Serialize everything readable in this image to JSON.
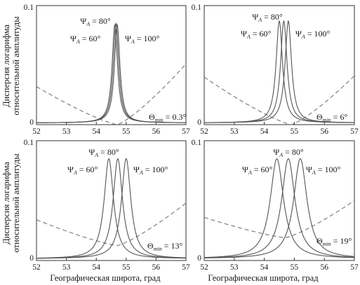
{
  "figure": {
    "ylabel_line1": "Дисперсия логарифма",
    "ylabel_line2": "относительной амплитуды",
    "xlabel": "Географическая широта, град"
  },
  "chart_data": [
    {
      "type": "line",
      "xlim": [
        52,
        57
      ],
      "ylim": [
        0,
        0.1
      ],
      "xticks": [
        "52",
        "53",
        "54",
        "55",
        "56",
        "57"
      ],
      "yticks": [
        "0",
        "0.1"
      ],
      "grid": false,
      "series": [
        {
          "name": "ΨA = 60°",
          "peak_x": 54.62,
          "peak_y": 0.084,
          "width": 0.11
        },
        {
          "name": "ΨA = 80°",
          "peak_x": 54.66,
          "peak_y": 0.085,
          "width": 0.11
        },
        {
          "name": "ΨA = 100°",
          "peak_x": 54.7,
          "peak_y": 0.084,
          "width": 0.11
        }
      ],
      "dashed_curve": {
        "x": [
          52.0,
          54.7,
          57.0
        ],
        "y": [
          0.032,
          0.0,
          0.051
        ]
      },
      "annotations": [
        {
          "type": "subscript",
          "base": "Ψ",
          "sub": "A",
          "tail": " = 80°"
        },
        {
          "type": "subscript",
          "base": "Ψ",
          "sub": "A",
          "tail": " = 60°"
        },
        {
          "type": "subscript",
          "base": "Ψ",
          "sub": "A",
          "tail": " = 100°"
        },
        {
          "type": "subscript",
          "base": "Θ",
          "sub": "min",
          "tail": " = 0.3°"
        }
      ]
    },
    {
      "type": "line",
      "xlim": [
        52,
        57
      ],
      "ylim": [
        0,
        0.1
      ],
      "xticks": [
        "52",
        "53",
        "54",
        "55",
        "56",
        "57"
      ],
      "yticks": [
        "0",
        "0.1"
      ],
      "grid": false,
      "series": [
        {
          "name": "ΨA = 60°",
          "peak_x": 54.5,
          "peak_y": 0.087,
          "width": 0.13
        },
        {
          "name": "ΨA = 80°",
          "peak_x": 54.65,
          "peak_y": 0.087,
          "width": 0.13
        },
        {
          "name": "ΨA = 100°",
          "peak_x": 54.8,
          "peak_y": 0.087,
          "width": 0.13
        }
      ],
      "dashed_curve": {
        "x": [
          52.0,
          54.9,
          57.0
        ],
        "y": [
          0.04,
          0.0,
          0.041
        ]
      },
      "annotations": [
        {
          "type": "subscript",
          "base": "Ψ",
          "sub": "A",
          "tail": " = 80°"
        },
        {
          "type": "subscript",
          "base": "Ψ",
          "sub": "A",
          "tail": " = 60°"
        },
        {
          "type": "subscript",
          "base": "Ψ",
          "sub": "A",
          "tail": " = 100°"
        },
        {
          "type": "subscript",
          "base": "Θ",
          "sub": "min",
          "tail": " = 6°"
        }
      ]
    },
    {
      "type": "line",
      "xlim": [
        52,
        57
      ],
      "ylim": [
        0,
        0.1
      ],
      "xticks": [
        "52",
        "53",
        "54",
        "55",
        "56",
        "57"
      ],
      "yticks": [
        "0",
        "0.1"
      ],
      "grid": false,
      "series": [
        {
          "name": "ΨA = 60°",
          "peak_x": 54.42,
          "peak_y": 0.085,
          "width": 0.19
        },
        {
          "name": "ΨA = 80°",
          "peak_x": 54.72,
          "peak_y": 0.085,
          "width": 0.19
        },
        {
          "name": "ΨA = 100°",
          "peak_x": 55.0,
          "peak_y": 0.085,
          "width": 0.19
        }
      ],
      "dashed_curve": {
        "x": [
          52.0,
          54.7,
          57.0
        ],
        "y": [
          0.034,
          0.0125,
          0.048
        ]
      },
      "annotations": [
        {
          "type": "subscript",
          "base": "Ψ",
          "sub": "A",
          "tail": " = 80°"
        },
        {
          "type": "subscript",
          "base": "Ψ",
          "sub": "A",
          "tail": " = 60°"
        },
        {
          "type": "subscript",
          "base": "Ψ",
          "sub": "A",
          "tail": " = 100°"
        },
        {
          "type": "subscript",
          "base": "Θ",
          "sub": "min",
          "tail": " = 13°"
        }
      ]
    },
    {
      "type": "line",
      "xlim": [
        52,
        57
      ],
      "ylim": [
        0,
        0.1
      ],
      "xticks": [
        "52",
        "53",
        "54",
        "55",
        "56",
        "57"
      ],
      "yticks": [
        "0",
        "0.1"
      ],
      "grid": false,
      "series": [
        {
          "name": "ΨA = 60°",
          "peak_x": 54.42,
          "peak_y": 0.085,
          "width": 0.27
        },
        {
          "name": "ΨA = 80°",
          "peak_x": 54.8,
          "peak_y": 0.085,
          "width": 0.27
        },
        {
          "name": "ΨA = 100°",
          "peak_x": 55.2,
          "peak_y": 0.085,
          "width": 0.27
        }
      ],
      "dashed_curve": {
        "x": [
          52.0,
          54.7,
          57.0
        ],
        "y": [
          0.036,
          0.019,
          0.05
        ]
      },
      "annotations": [
        {
          "type": "subscript",
          "base": "Ψ",
          "sub": "A",
          "tail": " = 80°"
        },
        {
          "type": "subscript",
          "base": "Ψ",
          "sub": "A",
          "tail": " = 60°"
        },
        {
          "type": "subscript",
          "base": "Ψ",
          "sub": "A",
          "tail": " = 100°"
        },
        {
          "type": "subscript",
          "base": "Θ",
          "sub": "min",
          "tail": " = 19°"
        }
      ]
    }
  ]
}
